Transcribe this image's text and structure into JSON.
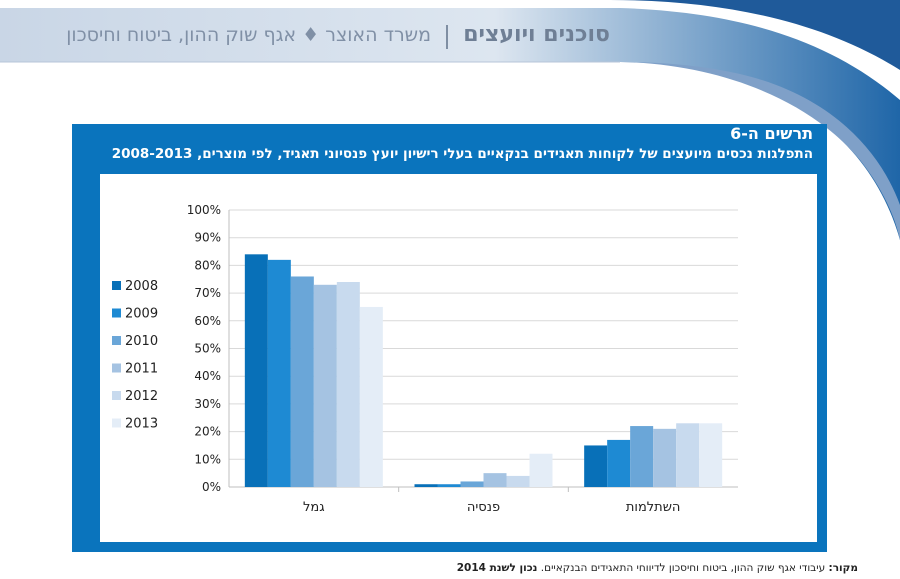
{
  "header": {
    "section": "סוכנים ויועצים",
    "ministry": "משרד האוצר ♦ אגף שוק ההון, ביטוח וחיסכון"
  },
  "figure": {
    "number": "תרשים ה-6",
    "title": "התפלגות נכסים מיועצים של לקוחות תאגידים בנקאיים בעלי רישיון יועץ פנסיוני תאגיד, לפי מוצרים, 2008-2013"
  },
  "source": {
    "label": "מקור:",
    "text": "עיבודי אגף שוק ההון, ביטוח וחיסכון לדיווחי התאגידים הבנקאיים.",
    "asof": "נכון לשנת 2014"
  },
  "colors": {
    "brand_blue": "#0a74bd",
    "series": [
      "#0870b8",
      "#1e8ad3",
      "#6aa6d8",
      "#a5c3e2",
      "#c8daee",
      "#e4edf7"
    ]
  },
  "chart_data": {
    "type": "bar",
    "categories": [
      "גמל",
      "פנסיה",
      "השתלמות"
    ],
    "series": [
      {
        "name": "2008",
        "values": [
          84,
          1,
          15
        ]
      },
      {
        "name": "2009",
        "values": [
          82,
          1,
          17
        ]
      },
      {
        "name": "2010",
        "values": [
          76,
          2,
          22
        ]
      },
      {
        "name": "2011",
        "values": [
          73,
          5,
          21
        ]
      },
      {
        "name": "2012",
        "values": [
          74,
          4,
          23
        ]
      },
      {
        "name": "2013",
        "values": [
          65,
          12,
          23
        ]
      }
    ],
    "ylim": [
      0,
      100
    ],
    "yticks": [
      "0%",
      "10%",
      "20%",
      "30%",
      "40%",
      "50%",
      "60%",
      "70%",
      "80%",
      "90%",
      "100%"
    ],
    "grid": true,
    "legend": "left"
  }
}
